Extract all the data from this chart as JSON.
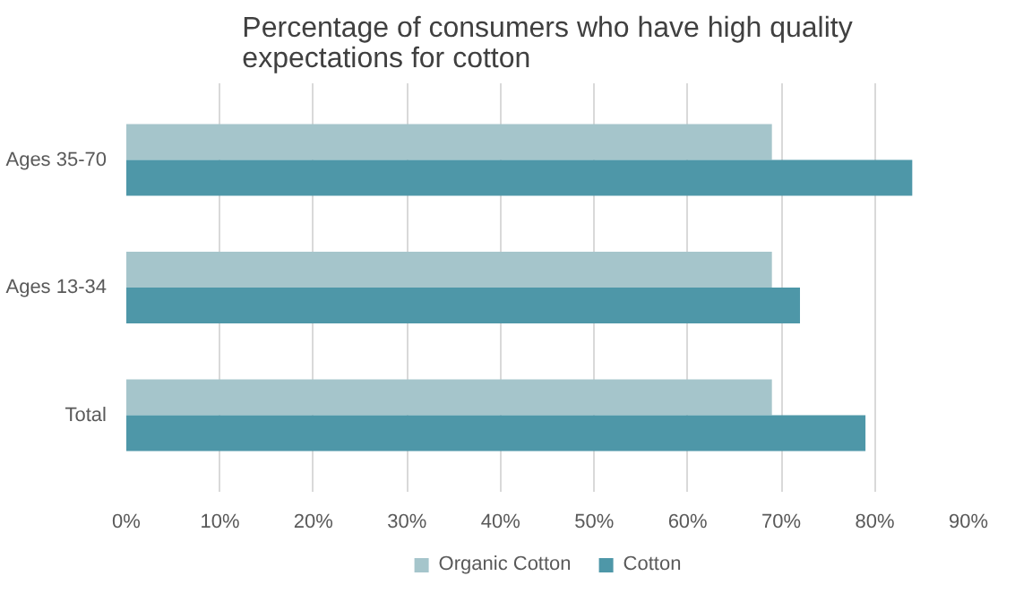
{
  "chart_data": {
    "type": "bar",
    "orientation": "horizontal",
    "title": "Percentage of consumers who have high quality\nexpectations for cotton",
    "categories": [
      "Ages 35-70",
      "Ages 13-34",
      "Total"
    ],
    "series": [
      {
        "name": "Organic Cotton",
        "color": "#a5c5cb",
        "values": [
          69,
          69,
          69
        ]
      },
      {
        "name": "Cotton",
        "color": "#4e97a8",
        "values": [
          84,
          72,
          79
        ]
      }
    ],
    "xlim": [
      0,
      90
    ],
    "xticks": [
      {
        "value": 0,
        "label": "0%"
      },
      {
        "value": 10,
        "label": "10%"
      },
      {
        "value": 20,
        "label": "20%"
      },
      {
        "value": 30,
        "label": "30%"
      },
      {
        "value": 40,
        "label": "40%"
      },
      {
        "value": 50,
        "label": "50%"
      },
      {
        "value": 60,
        "label": "60%"
      },
      {
        "value": 70,
        "label": "70%"
      },
      {
        "value": 80,
        "label": "80%"
      },
      {
        "value": 90,
        "label": "90%"
      }
    ],
    "grid": "x",
    "legend": "bottom"
  }
}
